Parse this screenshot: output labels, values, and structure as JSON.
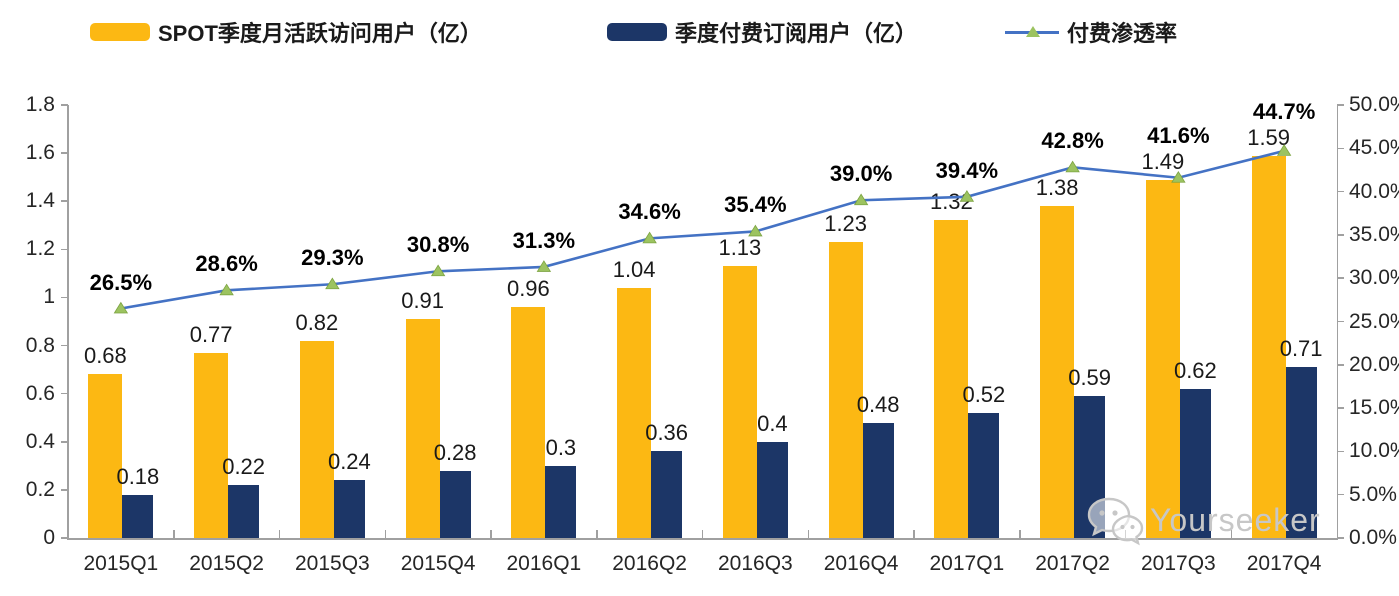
{
  "legend": {
    "items": [
      {
        "label": "SPOT季度月活跃访问用户（亿）",
        "swatch": "bar",
        "color": "#FCB813"
      },
      {
        "label": "季度付费订阅用户（亿）",
        "swatch": "bar",
        "color": "#1C3667"
      },
      {
        "label": "付费渗透率",
        "swatch": "line-with-triangle-marker",
        "color": "#4472C4",
        "marker_color": "#9CC360"
      }
    ]
  },
  "chart_data": {
    "type": "combo-bar-line",
    "categories": [
      "2015Q1",
      "2015Q2",
      "2015Q3",
      "2015Q4",
      "2016Q1",
      "2016Q2",
      "2016Q3",
      "2016Q4",
      "2017Q1",
      "2017Q2",
      "2017Q3",
      "2017Q4"
    ],
    "series": [
      {
        "name": "SPOT季度月活跃访问用户（亿）",
        "type": "bar",
        "axis": "left",
        "color": "#FCB813",
        "values": [
          0.68,
          0.77,
          0.82,
          0.91,
          0.96,
          1.04,
          1.13,
          1.23,
          1.32,
          1.38,
          1.49,
          1.59
        ],
        "labels": [
          "0.68",
          "0.77",
          "0.82",
          "0.91",
          "0.96",
          "1.04",
          "1.13",
          "1.23",
          "1.32",
          "1.38",
          "1.49",
          "1.59"
        ]
      },
      {
        "name": "季度付费订阅用户（亿）",
        "type": "bar",
        "axis": "left",
        "color": "#1C3667",
        "values": [
          0.18,
          0.22,
          0.24,
          0.28,
          0.3,
          0.36,
          0.4,
          0.48,
          0.52,
          0.59,
          0.62,
          0.71
        ],
        "labels": [
          "0.18",
          "0.22",
          "0.24",
          "0.28",
          "0.3",
          "0.36",
          "0.4",
          "0.48",
          "0.52",
          "0.59",
          "0.62",
          "0.71"
        ]
      },
      {
        "name": "付费渗透率",
        "type": "line",
        "axis": "right",
        "color": "#4472C4",
        "marker": "triangle",
        "marker_color": "#9CC360",
        "marker_edge_color": "#7da442",
        "values": [
          26.5,
          28.6,
          29.3,
          30.8,
          31.3,
          34.6,
          35.4,
          39.0,
          39.4,
          42.8,
          41.6,
          44.7
        ],
        "labels": [
          "26.5%",
          "28.6%",
          "29.3%",
          "30.8%",
          "31.3%",
          "34.6%",
          "35.4%",
          "39.0%",
          "39.4%",
          "42.8%",
          "41.6%",
          "44.7%"
        ]
      }
    ],
    "left_axis": {
      "min": 0,
      "max": 1.8,
      "step": 0.2,
      "tick_labels_top_to_bottom": [
        "1.8",
        "1.6",
        "1.4",
        "1.2",
        "1",
        "0.8",
        "0.6",
        "0.4",
        "0.2",
        "0"
      ]
    },
    "right_axis": {
      "min": 0,
      "max": 50,
      "step": 5,
      "tick_labels_top_to_bottom": [
        "50.0%",
        "45.0%",
        "40.0%",
        "35.0%",
        "30.0%",
        "25.0%",
        "20.0%",
        "15.0%",
        "10.0%",
        "5.0%",
        "0.0%"
      ]
    },
    "grid": false,
    "legend_position": "top"
  },
  "watermark": {
    "text": "Yourseeker",
    "icon": "wechat-icon"
  }
}
